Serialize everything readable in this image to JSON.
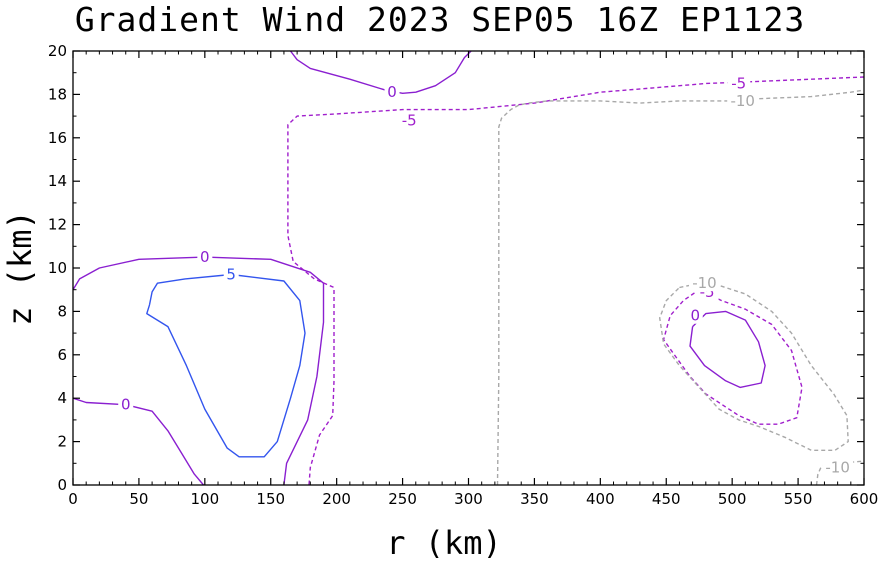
{
  "chart_data": {
    "type": "contour",
    "title": "Gradient Wind 2023 SEP05 16Z  EP1123",
    "xlabel": "r (km)",
    "ylabel": "z (km)",
    "xlim": [
      0,
      600
    ],
    "ylim": [
      0,
      20
    ],
    "x_ticks": [
      0,
      50,
      100,
      150,
      200,
      250,
      300,
      350,
      400,
      450,
      500,
      550,
      600
    ],
    "y_ticks": [
      0,
      2,
      4,
      6,
      8,
      10,
      12,
      14,
      16,
      18,
      20
    ],
    "levels": [
      {
        "level": "5",
        "color": "#3355ee",
        "dashed": false
      },
      {
        "level": "0",
        "color": "#8a1fd0",
        "dashed": false
      },
      {
        "level": "-5",
        "color": "#a01fcc",
        "dashed": true
      },
      {
        "level": "-10",
        "color": "#a8a8a8",
        "dashed": true
      }
    ],
    "contours": [
      {
        "name": "contour-5-inner-core",
        "level": "5",
        "points": [
          [
            58,
            8.3
          ],
          [
            60,
            8.9
          ],
          [
            64,
            9.3
          ],
          [
            85,
            9.5
          ],
          [
            120,
            9.7
          ],
          [
            160,
            9.4
          ],
          [
            172,
            8.5
          ],
          [
            176,
            7.0
          ],
          [
            172,
            5.5
          ],
          [
            165,
            4.0
          ],
          [
            155,
            2.0
          ],
          [
            145,
            1.3
          ],
          [
            126,
            1.3
          ],
          [
            117,
            1.7
          ],
          [
            100,
            3.5
          ],
          [
            86,
            5.5
          ],
          [
            72,
            7.3
          ],
          [
            56,
            7.9
          ],
          [
            58,
            8.3
          ]
        ]
      },
      {
        "name": "contour-0-inner-core",
        "level": "0",
        "points": [
          [
            0,
            9.0
          ],
          [
            5,
            9.5
          ],
          [
            20,
            10.0
          ],
          [
            50,
            10.4
          ],
          [
            100,
            10.5
          ],
          [
            150,
            10.4
          ],
          [
            180,
            9.8
          ],
          [
            190,
            9.3
          ],
          [
            190,
            7.5
          ],
          [
            185,
            5.0
          ],
          [
            178,
            3.0
          ],
          [
            162,
            1.0
          ],
          [
            160,
            0
          ]
        ]
      },
      {
        "name": "contour-0-lower-left",
        "level": "0",
        "points": [
          [
            0,
            4.0
          ],
          [
            10,
            3.8
          ],
          [
            40,
            3.7
          ],
          [
            60,
            3.4
          ],
          [
            72,
            2.5
          ],
          [
            82,
            1.5
          ],
          [
            92,
            0.5
          ],
          [
            99,
            0
          ]
        ]
      },
      {
        "name": "contour-0-upper",
        "level": "0",
        "points": [
          [
            165,
            20
          ],
          [
            170,
            19.6
          ],
          [
            180,
            19.2
          ],
          [
            210,
            18.7
          ],
          [
            237,
            18.2
          ],
          [
            250,
            18.05
          ],
          [
            260,
            18.1
          ],
          [
            275,
            18.4
          ],
          [
            290,
            19.0
          ],
          [
            297,
            19.7
          ],
          [
            302,
            20
          ]
        ]
      },
      {
        "name": "contour-0-outer-storm",
        "level": "0",
        "points": [
          [
            470,
            7.3
          ],
          [
            480,
            7.9
          ],
          [
            495,
            8.0
          ],
          [
            510,
            7.6
          ],
          [
            520,
            6.6
          ],
          [
            525,
            5.5
          ],
          [
            522,
            4.7
          ],
          [
            506,
            4.5
          ],
          [
            495,
            4.8
          ],
          [
            479,
            5.5
          ],
          [
            468,
            6.4
          ],
          [
            470,
            7.3
          ]
        ]
      },
      {
        "name": "contour-neg5-main",
        "level": "-5",
        "points": [
          [
            600,
            18.8
          ],
          [
            560,
            18.7
          ],
          [
            520,
            18.6
          ],
          [
            480,
            18.5
          ],
          [
            440,
            18.3
          ],
          [
            400,
            18.1
          ],
          [
            350,
            17.6
          ],
          [
            300,
            17.3
          ],
          [
            250,
            17.3
          ],
          [
            200,
            17.1
          ],
          [
            170,
            17.0
          ],
          [
            163,
            16.6
          ],
          [
            163,
            11.5
          ],
          [
            167,
            10.3
          ],
          [
            183,
            9.5
          ],
          [
            198,
            9.1
          ],
          [
            198,
            4.8
          ],
          [
            197,
            3.2
          ],
          [
            187,
            2.3
          ],
          [
            180,
            0.8
          ],
          [
            179,
            0
          ]
        ]
      },
      {
        "name": "contour-neg5-outer-storm",
        "level": "-5",
        "points": [
          [
            475,
            9.0
          ],
          [
            492,
            8.5
          ],
          [
            510,
            8.1
          ],
          [
            530,
            7.4
          ],
          [
            545,
            6.2
          ],
          [
            553,
            4.5
          ],
          [
            549,
            3.1
          ],
          [
            535,
            2.8
          ],
          [
            520,
            2.8
          ],
          [
            505,
            3.2
          ],
          [
            495,
            3.6
          ],
          [
            480,
            4.2
          ],
          [
            468,
            5.0
          ],
          [
            455,
            6.1
          ],
          [
            448,
            6.7
          ],
          [
            453,
            7.8
          ],
          [
            463,
            8.5
          ],
          [
            475,
            9.0
          ]
        ]
      },
      {
        "name": "contour-neg10-vertical",
        "level": "-10",
        "points": [
          [
            322,
            0
          ],
          [
            323,
            5.0
          ],
          [
            323,
            11.0
          ],
          [
            323,
            16.5
          ],
          [
            325,
            16.9
          ],
          [
            332,
            17.3
          ],
          [
            338,
            17.5
          ],
          [
            345,
            17.6
          ],
          [
            360,
            17.7
          ],
          [
            400,
            17.7
          ],
          [
            430,
            17.6
          ],
          [
            460,
            17.7
          ],
          [
            500,
            17.7
          ],
          [
            520,
            17.8
          ],
          [
            560,
            17.9
          ],
          [
            590,
            18.1
          ],
          [
            600,
            18.2
          ]
        ]
      },
      {
        "name": "contour-neg10-outer-storm",
        "level": "-10",
        "points": [
          [
            460,
            9.1
          ],
          [
            476,
            9.3
          ],
          [
            490,
            9.2
          ],
          [
            510,
            8.8
          ],
          [
            530,
            8.0
          ],
          [
            545,
            7.0
          ],
          [
            560,
            5.5
          ],
          [
            577,
            4.2
          ],
          [
            587,
            3.2
          ],
          [
            588,
            2.0
          ],
          [
            578,
            1.6
          ],
          [
            560,
            1.6
          ],
          [
            540,
            2.2
          ],
          [
            520,
            2.7
          ],
          [
            505,
            3.0
          ],
          [
            490,
            3.5
          ],
          [
            475,
            4.5
          ],
          [
            460,
            5.5
          ],
          [
            448,
            6.5
          ],
          [
            445,
            7.7
          ],
          [
            450,
            8.5
          ],
          [
            460,
            9.1
          ]
        ]
      },
      {
        "name": "contour-neg10-lower-right",
        "level": "-10",
        "points": [
          [
            564,
            0
          ],
          [
            565,
            0.5
          ],
          [
            568,
            0.9
          ],
          [
            580,
            1.0
          ],
          [
            600,
            1.1
          ]
        ]
      }
    ],
    "labels": [
      {
        "text": "5",
        "level": "5",
        "x": 120,
        "y": 9.7
      },
      {
        "text": "0",
        "level": "0",
        "x": 100,
        "y": 10.5
      },
      {
        "text": "0",
        "level": "0",
        "x": 40,
        "y": 3.7
      },
      {
        "text": "0",
        "level": "0",
        "x": 242,
        "y": 18.1
      },
      {
        "text": "0",
        "level": "0",
        "x": 472,
        "y": 7.8
      },
      {
        "text": "-5",
        "level": "-5",
        "x": 255,
        "y": 16.8
      },
      {
        "text": "-5",
        "level": "-5",
        "x": 505,
        "y": 18.5
      },
      {
        "text": "-5",
        "level": "-5",
        "x": 481,
        "y": 8.9
      },
      {
        "text": "-10",
        "level": "-10",
        "x": 508,
        "y": 17.7
      },
      {
        "text": "-10",
        "level": "-10",
        "x": 479,
        "y": 9.3
      },
      {
        "text": "-10",
        "level": "-10",
        "x": 580,
        "y": 0.8
      }
    ]
  }
}
